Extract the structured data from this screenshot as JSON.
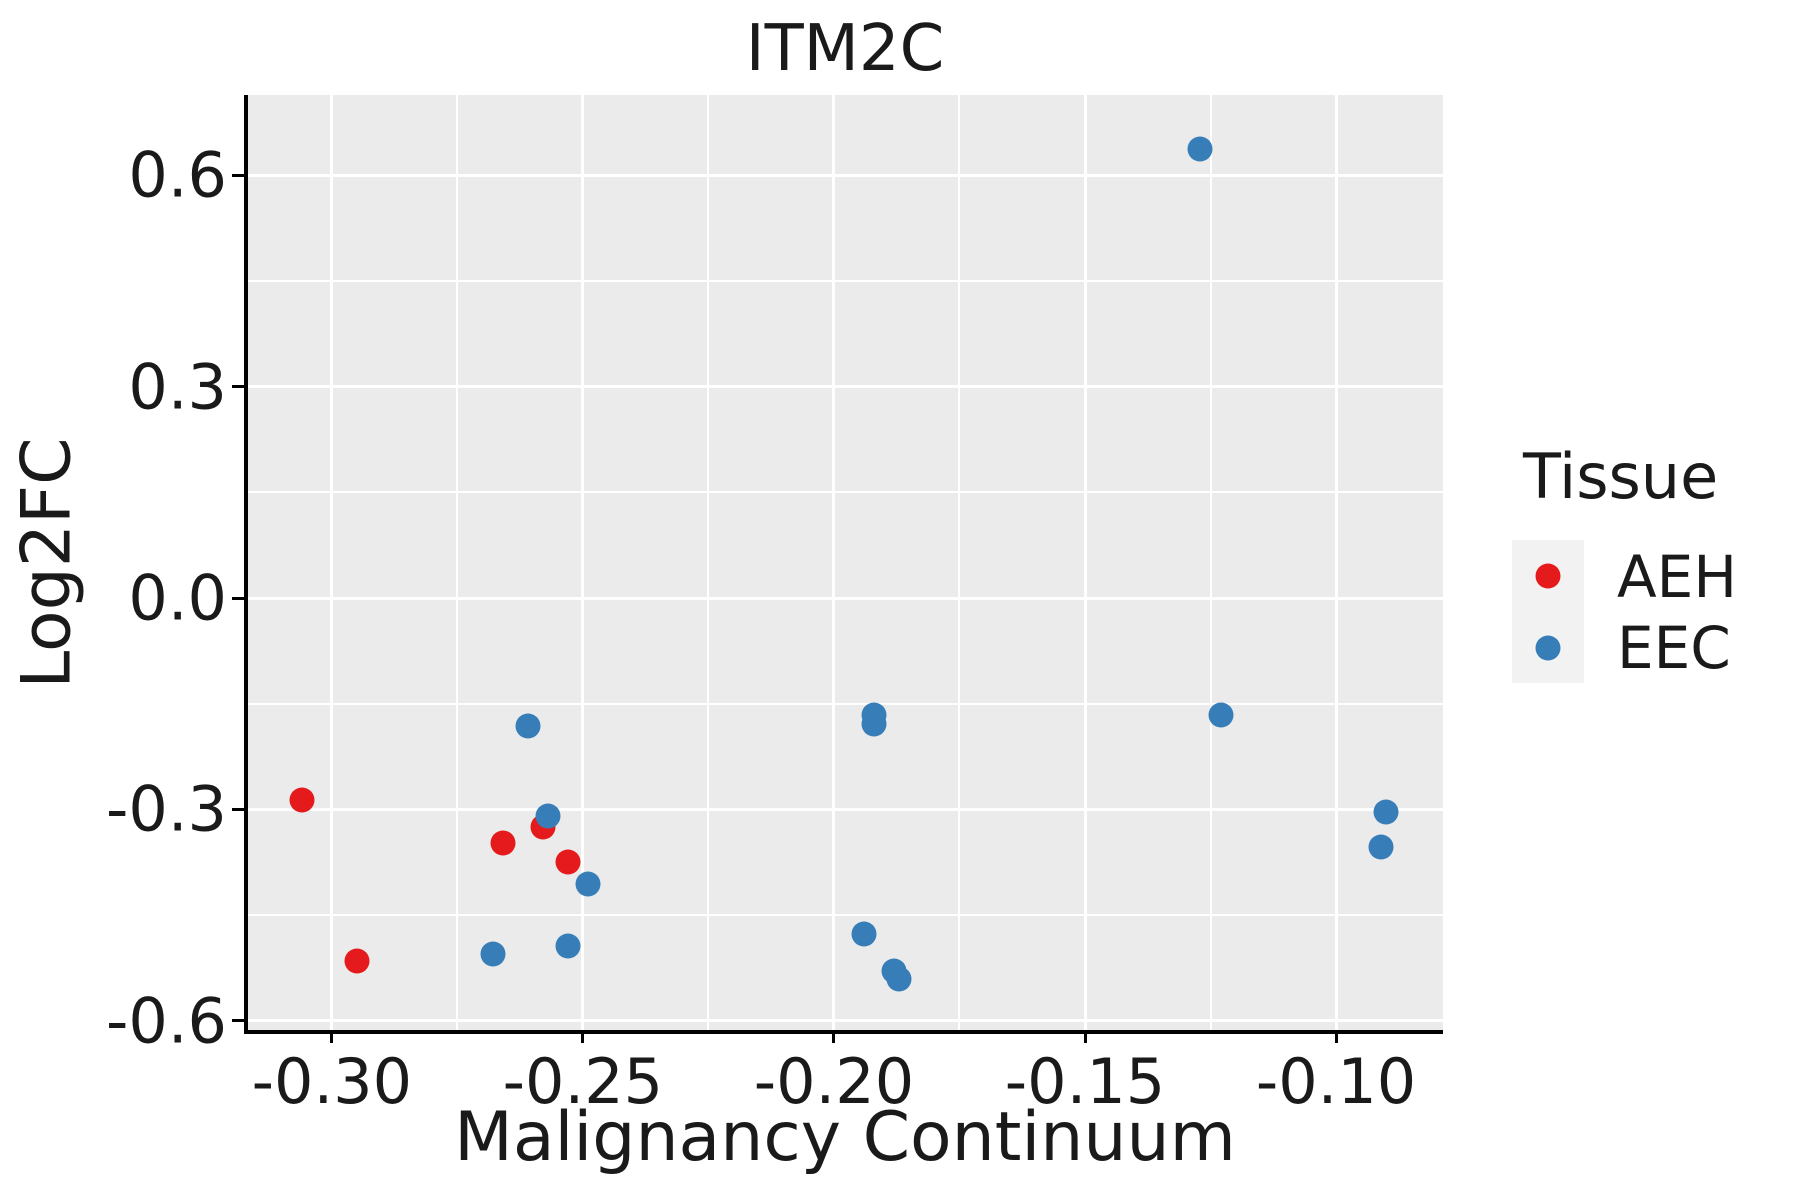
{
  "title": "ITM2C",
  "chart_data": {
    "type": "scatter",
    "title": "ITM2C",
    "xlabel": "Malignancy Continuum",
    "ylabel": "Log2FC",
    "xlim": [
      -0.3169,
      -0.0787
    ],
    "ylim": [
      -0.6142,
      0.7135
    ],
    "grid": true,
    "x_ticks": {
      "values": [
        -0.3,
        -0.25,
        -0.2,
        -0.15,
        -0.1
      ],
      "labels": [
        "-0.30",
        "-0.25",
        "-0.20",
        "-0.15",
        "-0.10"
      ]
    },
    "y_ticks": {
      "values": [
        0.6,
        0.3,
        0.0,
        -0.3,
        -0.6
      ],
      "labels": [
        "0.6",
        "0.3",
        "0.0",
        "-0.3",
        "-0.6"
      ]
    },
    "x_minor": [
      -0.275,
      -0.225,
      -0.175,
      -0.125
    ],
    "y_minor": [
      0.45,
      0.15,
      -0.15,
      -0.45
    ],
    "legend": {
      "title": "Tissue",
      "position": "right"
    },
    "series": [
      {
        "name": "AEH",
        "color": "#e41a1c",
        "points": [
          [
            -0.306,
            -0.286
          ],
          [
            -0.295,
            -0.515
          ],
          [
            -0.266,
            -0.347
          ],
          [
            -0.258,
            -0.325
          ],
          [
            -0.253,
            -0.375
          ]
        ]
      },
      {
        "name": "EEC",
        "color": "#377eb8",
        "points": [
          [
            -0.268,
            -0.505
          ],
          [
            -0.261,
            -0.182
          ],
          [
            -0.257,
            -0.309
          ],
          [
            -0.253,
            -0.493
          ],
          [
            -0.249,
            -0.406
          ],
          [
            -0.194,
            -0.477
          ],
          [
            -0.192,
            -0.166
          ],
          [
            -0.192,
            -0.179
          ],
          [
            -0.188,
            -0.529
          ],
          [
            -0.187,
            -0.54
          ],
          [
            -0.127,
            0.637
          ],
          [
            -0.123,
            -0.166
          ],
          [
            -0.091,
            -0.353
          ],
          [
            -0.09,
            -0.303
          ]
        ]
      }
    ],
    "colors": {
      "panel_bg": "#ebebeb",
      "grid": "#ffffff",
      "axis": "#000000",
      "text": "#1a1a1a",
      "legend_key_bg": "#f2f2f2"
    }
  }
}
